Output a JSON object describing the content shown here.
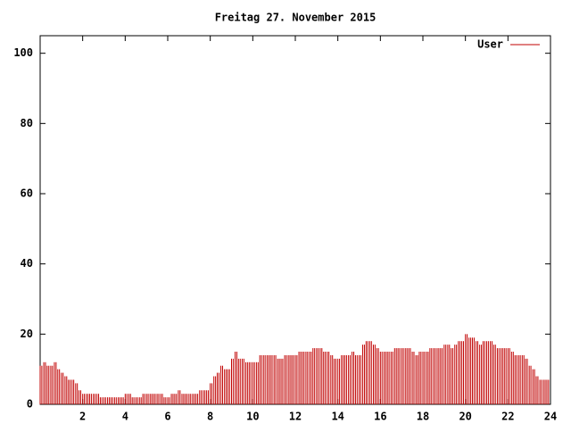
{
  "chart_data": {
    "type": "impulse",
    "title": "Freitag 27. November 2015",
    "x": [
      0,
      0.17,
      0.33,
      0.5,
      0.67,
      0.83,
      1,
      1.17,
      1.33,
      1.5,
      1.67,
      1.83,
      2,
      2.17,
      2.33,
      2.5,
      2.67,
      2.83,
      3,
      3.17,
      3.33,
      3.5,
      3.67,
      3.83,
      4,
      4.17,
      4.33,
      4.5,
      4.67,
      4.83,
      5,
      5.17,
      5.33,
      5.5,
      5.67,
      5.83,
      6,
      6.17,
      6.33,
      6.5,
      6.67,
      6.83,
      7,
      7.17,
      7.33,
      7.5,
      7.67,
      7.83,
      8,
      8.17,
      8.33,
      8.5,
      8.67,
      8.83,
      9,
      9.17,
      9.33,
      9.5,
      9.67,
      9.83,
      10,
      10.17,
      10.33,
      10.5,
      10.67,
      10.83,
      11,
      11.17,
      11.33,
      11.5,
      11.67,
      11.83,
      12,
      12.17,
      12.33,
      12.5,
      12.67,
      12.83,
      13,
      13.17,
      13.33,
      13.5,
      13.67,
      13.83,
      14,
      14.17,
      14.33,
      14.5,
      14.67,
      14.83,
      15,
      15.17,
      15.33,
      15.5,
      15.67,
      15.83,
      16,
      16.17,
      16.33,
      16.5,
      16.67,
      16.83,
      17,
      17.17,
      17.33,
      17.5,
      17.67,
      17.83,
      18,
      18.17,
      18.33,
      18.5,
      18.67,
      18.83,
      19,
      19.17,
      19.33,
      19.5,
      19.67,
      19.83,
      20,
      20.17,
      20.33,
      20.5,
      20.67,
      20.83,
      21,
      21.17,
      21.33,
      21.5,
      21.67,
      21.83,
      22,
      22.17,
      22.33,
      22.5,
      22.67,
      22.83,
      23,
      23.17,
      23.33,
      23.5,
      23.67,
      23.83
    ],
    "series": [
      {
        "name": "User",
        "color": "#c00000",
        "values": [
          11,
          12,
          11,
          11,
          12,
          10,
          9,
          8,
          7,
          7,
          6,
          4,
          3,
          3,
          3,
          3,
          3,
          2,
          2,
          2,
          2,
          2,
          2,
          2,
          3,
          3,
          2,
          2,
          2,
          3,
          3,
          3,
          3,
          3,
          3,
          2,
          2,
          3,
          3,
          4,
          3,
          3,
          3,
          3,
          3,
          4,
          4,
          4,
          6,
          8,
          9,
          11,
          10,
          10,
          13,
          15,
          13,
          13,
          12,
          12,
          12,
          12,
          14,
          14,
          14,
          14,
          14,
          13,
          13,
          14,
          14,
          14,
          14,
          15,
          15,
          15,
          15,
          16,
          16,
          16,
          15,
          15,
          14,
          13,
          13,
          14,
          14,
          14,
          15,
          14,
          14,
          17,
          18,
          18,
          17,
          16,
          15,
          15,
          15,
          15,
          16,
          16,
          16,
          16,
          16,
          15,
          14,
          15,
          15,
          15,
          16,
          16,
          16,
          16,
          17,
          17,
          16,
          17,
          18,
          18,
          20,
          19,
          19,
          18,
          17,
          18,
          18,
          18,
          17,
          16,
          16,
          16,
          16,
          15,
          14,
          14,
          14,
          13,
          11,
          10,
          8,
          7,
          7,
          7
        ]
      }
    ],
    "xlim": [
      0,
      24
    ],
    "xticks": [
      2,
      4,
      6,
      8,
      10,
      12,
      14,
      16,
      18,
      20,
      22,
      24
    ],
    "ylim": [
      0,
      105
    ],
    "yticks": [
      0,
      20,
      40,
      60,
      80,
      100
    ],
    "legend": "top-right"
  }
}
